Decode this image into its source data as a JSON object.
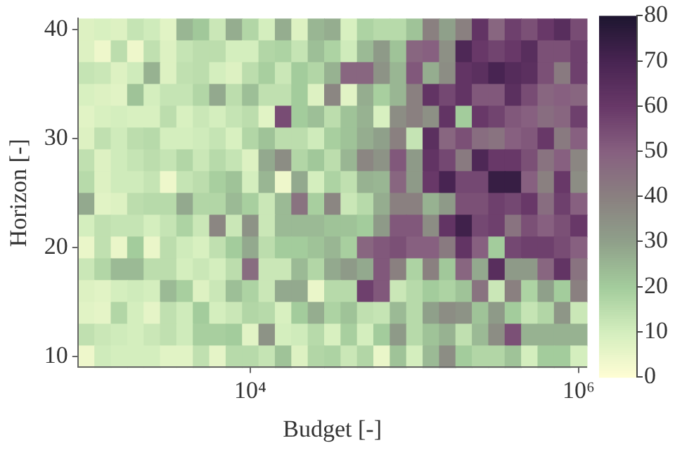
{
  "chart_data": {
    "type": "heatmap",
    "xlabel": "Budget [-]",
    "ylabel": "Horizon [-]",
    "log": "x",
    "xlim": [
      891.25,
      1122018.45
    ],
    "xticks": [
      {
        "value": 10000,
        "label": "10⁴"
      },
      {
        "value": 1000000,
        "label": "10⁶"
      }
    ],
    "ylim": [
      9,
      41
    ],
    "yticks": [
      10,
      20,
      30,
      40
    ],
    "clim": [
      0,
      80
    ],
    "cticks": [
      0,
      10,
      20,
      30,
      40,
      50,
      60,
      70,
      80
    ],
    "x": [
      1000,
      1259,
      1585,
      1995,
      2512,
      3162,
      3981,
      5012,
      6310,
      7943,
      10000,
      12589,
      15849,
      19953,
      25119,
      31623,
      39811,
      50119,
      63096,
      79433,
      100000,
      125893,
      158489,
      199526,
      251189,
      316228,
      398107,
      501187,
      630957,
      794328,
      1000000
    ],
    "y": [
      40,
      38,
      36,
      34,
      32,
      30,
      28,
      26,
      24,
      22,
      20,
      18,
      16,
      14,
      12,
      10
    ],
    "cells": [
      [
        8,
        9,
        8,
        13,
        11,
        7,
        25,
        21,
        12,
        27,
        17,
        10,
        27,
        8,
        25,
        27,
        9,
        18,
        16,
        16,
        22,
        40,
        30,
        40,
        62,
        48,
        58,
        54,
        60,
        65,
        55
      ],
      [
        8,
        4,
        15,
        4,
        14,
        8,
        13,
        15,
        15,
        10,
        10,
        17,
        18,
        13,
        23,
        18,
        11,
        24,
        32,
        22,
        48,
        50,
        35,
        68,
        60,
        57,
        60,
        65,
        54,
        54,
        58
      ],
      [
        13,
        12,
        8,
        11,
        26,
        8,
        14,
        15,
        10,
        8,
        15,
        19,
        12,
        20,
        17,
        26,
        48,
        48,
        34,
        25,
        52,
        27,
        36,
        62,
        64,
        70,
        66,
        64,
        54,
        42,
        58
      ],
      [
        9,
        8,
        7,
        22,
        10,
        13,
        13,
        17,
        28,
        15,
        23,
        14,
        14,
        20,
        8,
        38,
        7,
        27,
        19,
        25,
        40,
        62,
        56,
        62,
        52,
        52,
        64,
        55,
        48,
        50,
        48
      ],
      [
        7,
        9,
        10,
        9,
        9,
        15,
        9,
        12,
        10,
        13,
        15,
        7,
        55,
        20,
        23,
        15,
        22,
        26,
        9,
        36,
        40,
        35,
        62,
        20,
        60,
        57,
        52,
        50,
        46,
        48,
        58
      ],
      [
        8,
        14,
        11,
        15,
        16,
        10,
        10,
        11,
        13,
        9,
        17,
        22,
        15,
        15,
        11,
        19,
        22,
        27,
        30,
        40,
        13,
        64,
        48,
        54,
        46,
        44,
        50,
        52,
        60,
        42,
        50
      ],
      [
        14,
        8,
        11,
        13,
        15,
        13,
        17,
        12,
        16,
        13,
        8,
        28,
        36,
        17,
        21,
        15,
        25,
        38,
        34,
        52,
        32,
        62,
        56,
        42,
        68,
        60,
        60,
        54,
        44,
        50,
        38
      ],
      [
        16,
        8,
        11,
        11,
        13,
        4,
        13,
        15,
        19,
        22,
        10,
        25,
        4,
        28,
        10,
        18,
        14,
        26,
        25,
        48,
        32,
        60,
        70,
        56,
        56,
        74,
        74,
        50,
        40,
        60,
        36
      ],
      [
        28,
        7,
        8,
        15,
        16,
        16,
        28,
        17,
        17,
        24,
        19,
        12,
        24,
        44,
        19,
        38,
        12,
        16,
        27,
        40,
        40,
        26,
        32,
        54,
        54,
        58,
        56,
        60,
        46,
        58,
        50
      ],
      [
        10,
        14,
        13,
        13,
        10,
        13,
        18,
        12,
        38,
        12,
        34,
        12,
        24,
        24,
        24,
        22,
        22,
        20,
        32,
        52,
        52,
        36,
        62,
        72,
        56,
        58,
        44,
        54,
        50,
        54,
        60
      ],
      [
        5,
        14,
        5,
        20,
        5,
        15,
        11,
        9,
        14,
        20,
        28,
        15,
        20,
        20,
        22,
        25,
        19,
        48,
        52,
        54,
        50,
        50,
        42,
        62,
        50,
        20,
        56,
        58,
        58,
        55,
        50
      ],
      [
        12,
        17,
        24,
        24,
        15,
        15,
        10,
        12,
        10,
        15,
        46,
        12,
        12,
        24,
        17,
        28,
        32,
        28,
        52,
        40,
        18,
        40,
        21,
        48,
        28,
        65,
        32,
        32,
        48,
        62,
        44
      ],
      [
        8,
        7,
        10,
        11,
        10,
        24,
        19,
        8,
        12,
        23,
        18,
        12,
        28,
        28,
        5,
        16,
        16,
        58,
        52,
        12,
        16,
        20,
        18,
        22,
        44,
        12,
        40,
        18,
        30,
        20,
        40
      ],
      [
        7,
        6,
        17,
        10,
        6,
        14,
        11,
        20,
        10,
        12,
        17,
        16,
        9,
        20,
        27,
        18,
        22,
        14,
        13,
        24,
        16,
        30,
        36,
        34,
        22,
        32,
        20,
        13,
        17,
        33,
        12
      ],
      [
        14,
        12,
        11,
        10,
        12,
        14,
        11,
        19,
        19,
        20,
        7,
        34,
        10,
        11,
        16,
        9,
        19,
        10,
        20,
        32,
        16,
        22,
        26,
        14,
        24,
        36,
        54,
        26,
        26,
        26,
        26
      ],
      [
        4,
        11,
        10,
        10,
        10,
        7,
        7,
        14,
        6,
        16,
        16,
        13,
        22,
        8,
        17,
        18,
        12,
        17,
        5,
        22,
        10,
        24,
        36,
        20,
        17,
        17,
        22,
        10,
        20,
        20,
        10
      ]
    ]
  }
}
